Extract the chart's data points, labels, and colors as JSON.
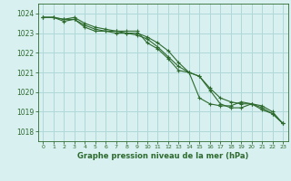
{
  "hours": [
    0,
    1,
    2,
    3,
    4,
    5,
    6,
    7,
    8,
    9,
    10,
    11,
    12,
    13,
    14,
    15,
    16,
    17,
    18,
    19,
    20,
    21,
    22,
    23
  ],
  "line1": [
    1023.8,
    1023.8,
    1023.7,
    1023.8,
    1023.5,
    1023.3,
    1023.2,
    1023.1,
    1023.0,
    1023.0,
    1022.8,
    1022.5,
    1022.1,
    1021.5,
    1021.0,
    1020.8,
    1020.2,
    1019.7,
    1019.5,
    1019.4,
    1019.4,
    1019.2,
    1018.9,
    1018.4
  ],
  "line2": [
    1023.8,
    1023.8,
    1023.6,
    1023.7,
    1023.3,
    1023.1,
    1023.1,
    1023.1,
    1023.1,
    1023.1,
    1022.5,
    1022.2,
    1021.7,
    1021.1,
    1021.0,
    1020.8,
    1020.1,
    1019.4,
    1019.2,
    1019.2,
    1019.4,
    1019.3,
    1019.0,
    1018.4
  ],
  "line3": [
    1023.8,
    1023.8,
    1023.7,
    1023.7,
    1023.4,
    1023.2,
    1023.1,
    1023.0,
    1023.0,
    1022.9,
    1022.7,
    1022.3,
    1021.8,
    1021.3,
    1021.0,
    1019.7,
    1019.4,
    1019.3,
    1019.3,
    1019.5,
    1019.4,
    1019.1,
    1018.9,
    1018.4
  ],
  "line_color": "#2d6a2d",
  "bg_color": "#d8f0f0",
  "grid_color": "#b0d8d8",
  "xlabel": "Graphe pression niveau de la mer (hPa)",
  "ylim": [
    1017.5,
    1024.5
  ],
  "yticks": [
    1018,
    1019,
    1020,
    1021,
    1022,
    1023,
    1024
  ],
  "xticks": [
    0,
    1,
    2,
    3,
    4,
    5,
    6,
    7,
    8,
    9,
    10,
    11,
    12,
    13,
    14,
    15,
    16,
    17,
    18,
    19,
    20,
    21,
    22,
    23
  ],
  "marker": "+",
  "linewidth": 0.8,
  "markersize": 3.0
}
